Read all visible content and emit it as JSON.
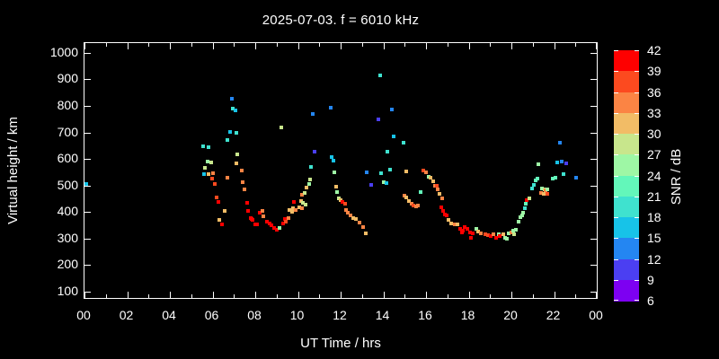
{
  "title": "2025-07-03. f = 6010 kHz",
  "chart_data": {
    "type": "scatter",
    "title": "2025-07-03. f = 6010 kHz",
    "xlabel": "UT Time / hrs",
    "ylabel": "Virtual height / km",
    "background": "#000000",
    "axis_color": "#ffffff",
    "grid": false,
    "xlim": [
      0,
      24
    ],
    "ylim": [
      76,
      1037
    ],
    "xticks": {
      "values": [
        0,
        2,
        4,
        6,
        8,
        10,
        12,
        14,
        16,
        18,
        20,
        22,
        24
      ],
      "labels": [
        "00",
        "02",
        "04",
        "06",
        "08",
        "10",
        "12",
        "14",
        "16",
        "18",
        "20",
        "22",
        "00"
      ],
      "minor_step_hr": 1
    },
    "yticks": [
      100,
      200,
      300,
      400,
      500,
      600,
      700,
      800,
      900,
      1000
    ],
    "marker": "square",
    "marker_size_px": 4,
    "colorbar": {
      "label": "SNR / dB",
      "min_db": 6,
      "max_db": 42,
      "step_db": 3,
      "tick_labels_top_to_bottom": [
        "42",
        "39",
        "36",
        "33",
        "30",
        "27",
        "24",
        "21",
        "18",
        "15",
        "12",
        "9",
        "6"
      ],
      "palette_low_to_high": [
        "#7d00f2",
        "#4b3ff2",
        "#2486f2",
        "#17c3e8",
        "#3fe2cf",
        "#63f7ba",
        "#9ef7a5",
        "#c8e68c",
        "#f2bc66",
        "#fb8444",
        "#fc4a1f",
        "#fe0000"
      ],
      "bin_ranges_db": [
        "6-9",
        "9-12",
        "12-15",
        "15-18",
        "18-21",
        "21-24",
        "24-27",
        "27-30",
        "30-33",
        "33-36",
        "36-39",
        "39-42"
      ]
    },
    "points_format": "[ut_hour, virtual_height_km, snr_bin_index(0=6-9dB ... 11=39-42dB)]",
    "points": [
      [
        0.1,
        505,
        3
      ],
      [
        5.55,
        649,
        4
      ],
      [
        5.62,
        543,
        3
      ],
      [
        5.66,
        565,
        7
      ],
      [
        5.78,
        590,
        6
      ],
      [
        5.81,
        643,
        4
      ],
      [
        5.83,
        542,
        8
      ],
      [
        5.92,
        587,
        7
      ],
      [
        5.97,
        527,
        10
      ],
      [
        6.03,
        545,
        9
      ],
      [
        6.11,
        506,
        10
      ],
      [
        6.18,
        455,
        10
      ],
      [
        6.27,
        439,
        11
      ],
      [
        6.32,
        369,
        8
      ],
      [
        6.43,
        354,
        11
      ],
      [
        6.58,
        404,
        8
      ],
      [
        6.69,
        529,
        9
      ],
      [
        6.71,
        671,
        4
      ],
      [
        6.83,
        702,
        3
      ],
      [
        6.9,
        827,
        2
      ],
      [
        6.95,
        789,
        4
      ],
      [
        7.06,
        783,
        3
      ],
      [
        7.1,
        699,
        4
      ],
      [
        7.13,
        582,
        8
      ],
      [
        7.17,
        618,
        7
      ],
      [
        7.36,
        556,
        9
      ],
      [
        7.41,
        514,
        9
      ],
      [
        7.48,
        484,
        9
      ],
      [
        7.6,
        436,
        11
      ],
      [
        7.67,
        404,
        11
      ],
      [
        7.79,
        377,
        11
      ],
      [
        7.83,
        374,
        11
      ],
      [
        7.86,
        369,
        11
      ],
      [
        8.02,
        355,
        11
      ],
      [
        8.08,
        352,
        11
      ],
      [
        8.23,
        397,
        11
      ],
      [
        8.34,
        403,
        9
      ],
      [
        8.39,
        385,
        9
      ],
      [
        8.53,
        364,
        11
      ],
      [
        8.67,
        357,
        11
      ],
      [
        8.77,
        349,
        11
      ],
      [
        8.88,
        341,
        11
      ],
      [
        8.99,
        334,
        11
      ],
      [
        9.12,
        341,
        6
      ],
      [
        9.23,
        720,
        7
      ],
      [
        9.29,
        357,
        11
      ],
      [
        9.37,
        374,
        11
      ],
      [
        9.44,
        365,
        10
      ],
      [
        9.54,
        378,
        9
      ],
      [
        9.62,
        407,
        8
      ],
      [
        9.73,
        400,
        8
      ],
      [
        9.77,
        415,
        8
      ],
      [
        9.82,
        437,
        11
      ],
      [
        9.89,
        408,
        9
      ],
      [
        10.06,
        417,
        8
      ],
      [
        10.13,
        442,
        8
      ],
      [
        10.17,
        414,
        9
      ],
      [
        10.24,
        434,
        7
      ],
      [
        10.37,
        428,
        7
      ],
      [
        10.18,
        465,
        9
      ],
      [
        10.3,
        471,
        7
      ],
      [
        10.42,
        492,
        8
      ],
      [
        10.51,
        507,
        6
      ],
      [
        10.55,
        521,
        7
      ],
      [
        10.59,
        571,
        4
      ],
      [
        10.69,
        770,
        2
      ],
      [
        10.76,
        628,
        1
      ],
      [
        11.53,
        793,
        2
      ],
      [
        11.57,
        608,
        3
      ],
      [
        11.68,
        595,
        3
      ],
      [
        11.71,
        549,
        6
      ],
      [
        11.77,
        496,
        8
      ],
      [
        11.85,
        475,
        6
      ],
      [
        11.91,
        453,
        7
      ],
      [
        12.02,
        445,
        8
      ],
      [
        12.09,
        437,
        11
      ],
      [
        12.19,
        431,
        10
      ],
      [
        12.24,
        408,
        9
      ],
      [
        12.35,
        399,
        9
      ],
      [
        12.48,
        388,
        9
      ],
      [
        12.59,
        377,
        8
      ],
      [
        12.73,
        375,
        8
      ],
      [
        12.87,
        360,
        9
      ],
      [
        13.04,
        343,
        9
      ],
      [
        13.18,
        318,
        8
      ],
      [
        13.22,
        549,
        2
      ],
      [
        13.43,
        502,
        1
      ],
      [
        13.78,
        750,
        1
      ],
      [
        13.85,
        916,
        4
      ],
      [
        13.89,
        546,
        4
      ],
      [
        14.03,
        512,
        6
      ],
      [
        14.13,
        508,
        3
      ],
      [
        14.19,
        627,
        4
      ],
      [
        14.31,
        561,
        4
      ],
      [
        14.38,
        787,
        2
      ],
      [
        14.48,
        686,
        3
      ],
      [
        14.95,
        660,
        4
      ],
      [
        14.98,
        461,
        9
      ],
      [
        15.06,
        552,
        8
      ],
      [
        15.09,
        455,
        8
      ],
      [
        15.21,
        442,
        8
      ],
      [
        15.31,
        432,
        9
      ],
      [
        15.42,
        424,
        10
      ],
      [
        15.53,
        422,
        9
      ],
      [
        15.61,
        423,
        9
      ],
      [
        15.76,
        476,
        5
      ],
      [
        15.86,
        557,
        10
      ],
      [
        16.0,
        551,
        9
      ],
      [
        16.12,
        534,
        6
      ],
      [
        16.23,
        529,
        8
      ],
      [
        16.32,
        517,
        8
      ],
      [
        16.42,
        500,
        9
      ],
      [
        16.5,
        498,
        10
      ],
      [
        16.56,
        484,
        9
      ],
      [
        16.65,
        467,
        8
      ],
      [
        16.74,
        452,
        9
      ],
      [
        16.72,
        418,
        11
      ],
      [
        16.82,
        405,
        11
      ],
      [
        16.9,
        391,
        11
      ],
      [
        16.96,
        386,
        11
      ],
      [
        17.07,
        371,
        8
      ],
      [
        17.19,
        358,
        8
      ],
      [
        17.33,
        352,
        9
      ],
      [
        17.47,
        355,
        8
      ],
      [
        17.6,
        338,
        11
      ],
      [
        17.68,
        323,
        11
      ],
      [
        17.73,
        330,
        11
      ],
      [
        17.79,
        343,
        11
      ],
      [
        17.93,
        338,
        11
      ],
      [
        18.07,
        323,
        11
      ],
      [
        18.12,
        304,
        11
      ],
      [
        18.18,
        318,
        11
      ],
      [
        18.35,
        338,
        6
      ],
      [
        18.44,
        327,
        8
      ],
      [
        18.58,
        318,
        9
      ],
      [
        18.77,
        315,
        10
      ],
      [
        18.91,
        312,
        10
      ],
      [
        19.05,
        310,
        11
      ],
      [
        19.16,
        315,
        9
      ],
      [
        19.27,
        304,
        11
      ],
      [
        19.4,
        315,
        6
      ],
      [
        19.47,
        310,
        11
      ],
      [
        19.61,
        315,
        8
      ],
      [
        19.69,
        304,
        6
      ],
      [
        19.79,
        300,
        6
      ],
      [
        19.89,
        318,
        6
      ],
      [
        20.0,
        322,
        9
      ],
      [
        20.07,
        330,
        6
      ],
      [
        20.11,
        317,
        7
      ],
      [
        20.21,
        333,
        6
      ],
      [
        20.34,
        364,
        6
      ],
      [
        20.41,
        379,
        6
      ],
      [
        20.49,
        386,
        6
      ],
      [
        20.56,
        399,
        6
      ],
      [
        20.63,
        414,
        4
      ],
      [
        20.67,
        431,
        5
      ],
      [
        20.73,
        446,
        11
      ],
      [
        20.84,
        451,
        7
      ],
      [
        20.95,
        489,
        4
      ],
      [
        21.05,
        503,
        4
      ],
      [
        21.13,
        520,
        5
      ],
      [
        21.22,
        527,
        5
      ],
      [
        21.26,
        581,
        6
      ],
      [
        21.38,
        472,
        9
      ],
      [
        21.42,
        489,
        6
      ],
      [
        21.52,
        470,
        8
      ],
      [
        21.55,
        487,
        7
      ],
      [
        21.62,
        483,
        9
      ],
      [
        21.68,
        469,
        10
      ],
      [
        21.7,
        486,
        6
      ],
      [
        21.93,
        525,
        5
      ],
      [
        22.07,
        531,
        5
      ],
      [
        22.14,
        588,
        3
      ],
      [
        22.28,
        663,
        2
      ],
      [
        22.34,
        590,
        2
      ],
      [
        22.44,
        542,
        4
      ],
      [
        22.56,
        585,
        1
      ],
      [
        23.05,
        531,
        2
      ]
    ]
  }
}
